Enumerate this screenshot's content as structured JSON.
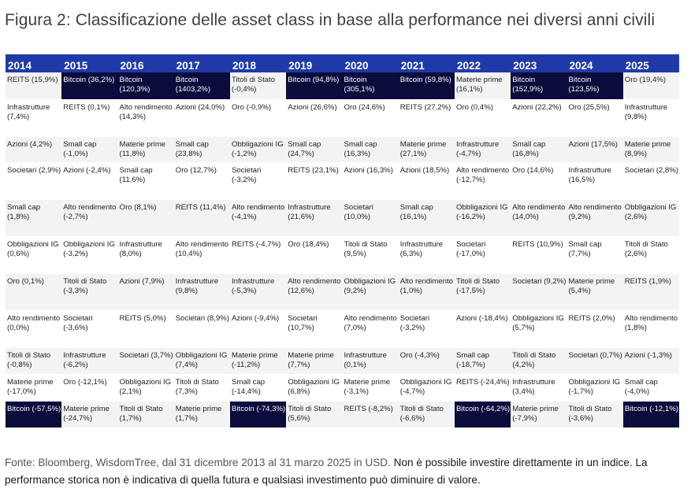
{
  "title": "Figura 2: Classificazione delle asset class in base alla performance nei diversi anni civili",
  "colors": {
    "header_bg": "#1f3aa8",
    "highlight_bg": "#0b0b3c",
    "row_alt": "#f3f3f3"
  },
  "chart_data": {
    "type": "table",
    "highlight": "Bitcoin",
    "columns": [
      "2014",
      "2015",
      "2016",
      "2017",
      "2018",
      "2019",
      "2020",
      "2021",
      "2022",
      "2023",
      "2024",
      "2025"
    ],
    "rows": [
      [
        "REITS (15,9%)",
        "Bitcoin (36,2%)",
        "Bitcoin (120,3%)",
        "Bitcoin (1403,2%)",
        "Titoli di Stato (-0,4%)",
        "Bitcoin (94,8%)",
        "Bitcoin (305,1%)",
        "Bitcoin (59,8%)",
        "Materie prime (16,1%)",
        "Bitcoin (152,9%)",
        "Bitcoin (123,5%)",
        "Oro (19,4%)"
      ],
      [
        "Infrastrutture (7,4%)",
        "REITS (0,1%)",
        "Alto rendimento (14,3%)",
        "Azioni (24,0%)",
        "Oro (-0,9%)",
        "Azioni (26,6%)",
        "Oro (24,6%)",
        "REITS (27,2%)",
        "Oro (0,4%)",
        "Azioni (22,2%)",
        "Oro (25,5%)",
        "Infrastrutture (9,8%)"
      ],
      [
        "Azioni (4,2%)",
        "Small cap (-1,0%)",
        "Materie prime (11,8%)",
        "Small cap (23,8%)",
        "Obbligazioni IG (-1,2%)",
        "Small cap (24,7%)",
        "Small cap (16,3%)",
        "Materie prime (27,1%)",
        "Infrastrutture (-4,7%)",
        "Small cap (16,8%)",
        "Azioni (17,5%)",
        "Materie prime (8,9%)"
      ],
      [
        "Societari (2,9%)",
        "Azioni (-2,4%)",
        "Small cap (11,6%)",
        "Oro (12,7%)",
        "Societari (-3,2%)",
        "REITS (23,1%)",
        "Azioni (16,3%)",
        "Azioni (18,5%)",
        "Alto rendimento (-12,7%)",
        "Oro (14,6%)",
        "Infrastrutture (16,5%)",
        "Societari (2,8%)"
      ],
      [
        "Small cap (1,8%)",
        "Alto rendimento (-2,7%)",
        "Oro (8,1%)",
        "REITS (11,4%)",
        "Alto rendimento (-4,1%)",
        "Infrastrutture (21,6%)",
        "Societari (10,0%)",
        "Small cap (16,1%)",
        "Obbligazioni IG (-16,2%)",
        "Alto rendimento (14,0%)",
        "Alto rendimento (9,2%)",
        "Obbligazioni IG (2,6%)"
      ],
      [
        "Obbligazioni IG (0,6%)",
        "Obbligazioni IG (-3,2%)",
        "Infrastrutture (8,0%)",
        "Alto rendimento (10,4%)",
        "REITS (-4,7%)",
        "Oro (18,4%)",
        "Titoli di Stato (9,5%)",
        "Infrastrutture (6,3%)",
        "Societari (-17,0%)",
        "REITS (10,9%)",
        "Small cap (7,7%)",
        "Titoli di Stato (2,6%)"
      ],
      [
        "Oro (0,1%)",
        "Titoli di Stato (-3,3%)",
        "Azioni (7,9%)",
        "Infrastrutture (9,8%)",
        "Infrastrutture (-5,3%)",
        "Alto rendimento (12,6%)",
        "Obbligazioni IG (9,2%)",
        "Alto rendimento (1,0%)",
        "Titoli di Stato (-17,5%)",
        "Societari (9,2%)",
        "Materie prime (5,4%)",
        "REITS (1,9%)"
      ],
      [
        "Alto rendimento (0,0%)",
        "Societari (-3,6%)",
        "REITS (5,0%)",
        "Societari (8,9%)",
        "Azioni (-9,4%)",
        "Societari (10,7%)",
        "Alto rendimento (7,0%)",
        "Societari (-3,2%)",
        "Azioni (-18,4%)",
        "Obbligazioni IG (5,7%)",
        "REITS (2,0%)",
        "Alto rendimento (1,8%)"
      ],
      [
        "Titoli di Stato (-0,8%)",
        "Infrastrutture (-6,2%)",
        "Societari (3,7%)",
        "Obbligazioni IG (7,4%)",
        "Materie prime (-11,2%)",
        "Materie prime (7,7%)",
        "Infrastrutture (0,1%)",
        "Oro (-4,3%)",
        "Small cap (-18,7%)",
        "Titoli di Stato (4,2%)",
        "Societari (0,7%)",
        "Azioni (-1,3%)"
      ],
      [
        "Materie prime (-17,0%)",
        "Oro (-12,1%)",
        "Obbligazioni IG (2,1%)",
        "Titoli di Stato (7,3%)",
        "Small cap (-14,4%)",
        "Obbligazioni IG (6,8%)",
        "Materie prime (-3,1%)",
        "Obbligazioni IG (-4,7%)",
        "REITS (-24,4%)",
        "Infrastrutture (3,4%)",
        "Obbligazioni IG (-1,7%)",
        "Small cap (-4,0%)"
      ],
      [
        "Bitcoin (-57,5%)",
        "Materie prime (-24,7%)",
        "Titoli di Stato (1,7%)",
        "Materie prime (1,7%)",
        "Bitcoin (-74,3%)",
        "Titoli di Stato (5,6%)",
        "REITS (-8,2%)",
        "Titoli di Stato (-6,6%)",
        "Bitcoin (-64,2%)",
        "Materie prime (-7,9%)",
        "Titoli di Stato (-3,6%)",
        "Bitcoin (-12,1%)"
      ]
    ]
  },
  "footer": {
    "source": "Fonte: Bloomberg, WisdomTree, dal 31 dicembre 2013 al 31 marzo 2025 in USD.",
    "disclaimer": "Non è possibile investire direttamente in un indice. La performance storica non è indicativa di quella futura e qualsiasi investimento può diminuire di valore."
  }
}
